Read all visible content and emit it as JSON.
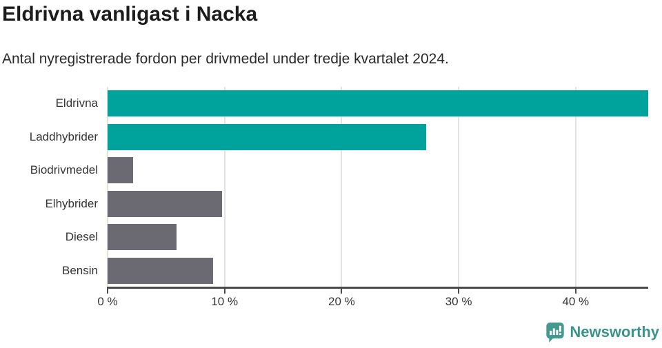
{
  "title": "Eldrivna vanligast i Nacka",
  "subtitle": "Antal nyregistrerade fordon per drivmedel under tredje kvartalet 2024.",
  "footer": {
    "brand": "Newsworthy",
    "logo_icon": "bar-chart-speech-bubble-icon",
    "brand_color": "#3a948c",
    "icon_color": "#44998f"
  },
  "colors": {
    "highlight": "#00a39c",
    "default": "#6b6971",
    "gridline": "#e2e2e2",
    "axis_line": "#4a4a4b",
    "label_text": "#333333",
    "title_text": "#1c1c1c",
    "background": "#ffffff"
  },
  "chart_data": {
    "type": "bar",
    "orientation": "horizontal",
    "title": "Eldrivna vanligast i Nacka",
    "subtitle": "Antal nyregistrerade fordon per drivmedel under tredje kvartalet 2024.",
    "categories": [
      "Eldrivna",
      "Laddhybrider",
      "Biodrivmedel",
      "Elhybrider",
      "Diesel",
      "Bensin"
    ],
    "values": [
      46.2,
      27.2,
      2.2,
      9.8,
      5.9,
      9.0
    ],
    "bar_color_roles": [
      "highlight",
      "highlight",
      "default",
      "default",
      "default",
      "default"
    ],
    "value_unit": "%",
    "xlabel": "",
    "ylabel": "",
    "xlim": [
      0,
      46.2
    ],
    "x_ticks": [
      0,
      10,
      20,
      30,
      40
    ],
    "x_tick_labels": [
      "0 %",
      "10 %",
      "20 %",
      "30 %",
      "40 %"
    ],
    "grid": true,
    "legend_position": "none"
  }
}
